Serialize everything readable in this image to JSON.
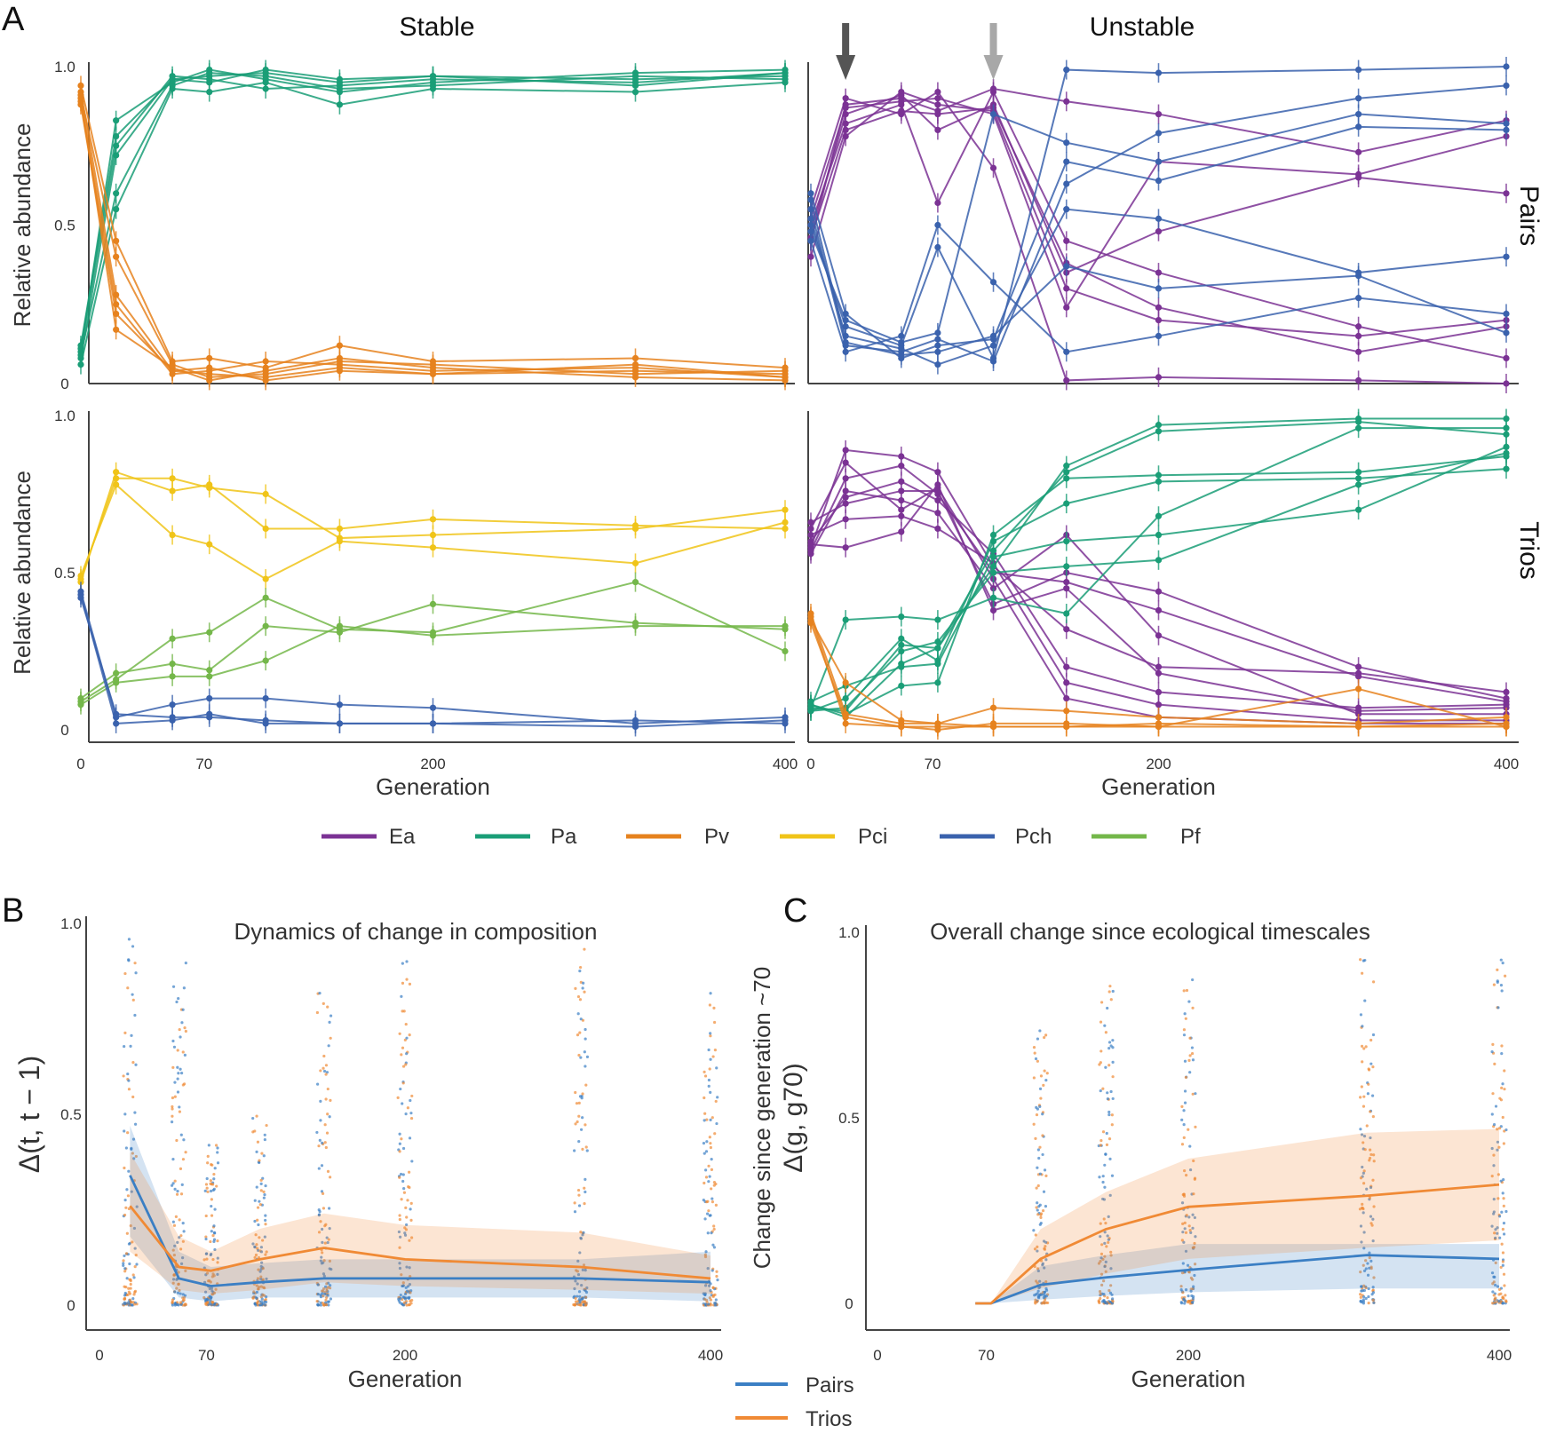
{
  "figure": {
    "panel_letters": [
      "A",
      "B",
      "C"
    ],
    "column_titles": [
      "Stable",
      "Unstable"
    ],
    "row_titles": [
      "Pairs",
      "Trios"
    ],
    "species_legend": [
      {
        "name": "Ea",
        "color": "#7b3294"
      },
      {
        "name": "Pa",
        "color": "#1a9e77"
      },
      {
        "name": "Pv",
        "color": "#e6821e"
      },
      {
        "name": "Pci",
        "color": "#f0c419"
      },
      {
        "name": "Pch",
        "color": "#3a62ad"
      },
      {
        "name": "Pf",
        "color": "#74b74a"
      }
    ],
    "group_legend": [
      {
        "name": "Pairs",
        "color": "#3b7fc4"
      },
      {
        "name": "Trios",
        "color": "#f08a35"
      }
    ]
  },
  "chart_data": [
    {
      "id": "A-stable-pairs",
      "type": "line",
      "xlabel": "",
      "ylabel": "Relative abundance",
      "xlim": [
        0,
        400
      ],
      "ylim": [
        0,
        1
      ],
      "xticks": [],
      "yticks": [
        "0",
        "0.5",
        "1.0"
      ],
      "x": [
        0,
        20,
        52,
        73,
        105,
        147,
        200,
        315,
        400
      ],
      "series": [
        {
          "species": "Pa",
          "values": [
            0.08,
            0.72,
            0.96,
            0.97,
            0.98,
            0.95,
            0.97,
            0.96,
            0.97
          ]
        },
        {
          "species": "Pa",
          "values": [
            0.1,
            0.83,
            0.95,
            0.99,
            0.96,
            0.92,
            0.95,
            0.98,
            0.99
          ]
        },
        {
          "species": "Pa",
          "values": [
            0.06,
            0.55,
            0.93,
            0.92,
            0.95,
            0.88,
            0.93,
            0.92,
            0.95
          ]
        },
        {
          "species": "Pa",
          "values": [
            0.11,
            0.75,
            0.97,
            0.96,
            0.93,
            0.94,
            0.96,
            0.95,
            0.98
          ]
        },
        {
          "species": "Pa",
          "values": [
            0.09,
            0.6,
            0.94,
            0.98,
            0.97,
            0.93,
            0.94,
            0.97,
            0.96
          ]
        },
        {
          "species": "Pa",
          "values": [
            0.12,
            0.78,
            0.96,
            0.95,
            0.99,
            0.96,
            0.97,
            0.94,
            0.98
          ]
        },
        {
          "species": "Pv",
          "values": [
            0.92,
            0.28,
            0.04,
            0.03,
            0.02,
            0.05,
            0.03,
            0.04,
            0.03
          ]
        },
        {
          "species": "Pv",
          "values": [
            0.9,
            0.17,
            0.05,
            0.01,
            0.04,
            0.08,
            0.05,
            0.02,
            0.01
          ]
        },
        {
          "species": "Pv",
          "values": [
            0.94,
            0.45,
            0.07,
            0.08,
            0.05,
            0.12,
            0.07,
            0.08,
            0.05
          ]
        },
        {
          "species": "Pv",
          "values": [
            0.89,
            0.25,
            0.03,
            0.04,
            0.07,
            0.06,
            0.04,
            0.05,
            0.02
          ]
        },
        {
          "species": "Pv",
          "values": [
            0.91,
            0.4,
            0.06,
            0.02,
            0.03,
            0.07,
            0.06,
            0.03,
            0.04
          ]
        },
        {
          "species": "Pv",
          "values": [
            0.88,
            0.22,
            0.04,
            0.05,
            0.01,
            0.04,
            0.03,
            0.06,
            0.02
          ]
        }
      ]
    },
    {
      "id": "A-unstable-pairs",
      "type": "line",
      "xlabel": "",
      "ylabel": "",
      "xlim": [
        0,
        400
      ],
      "ylim": [
        0,
        1
      ],
      "xticks": [],
      "yticks": [],
      "arrows_at_generation": [
        20,
        105
      ],
      "x": [
        0,
        20,
        52,
        73,
        105,
        147,
        200,
        315,
        400
      ],
      "series": [
        {
          "species": "Ea",
          "values": [
            0.45,
            0.88,
            0.9,
            0.86,
            0.93,
            0.89,
            0.85,
            0.73,
            0.83
          ]
        },
        {
          "species": "Ea",
          "values": [
            0.5,
            0.82,
            0.88,
            0.57,
            0.92,
            0.45,
            0.35,
            0.18,
            0.08
          ]
        },
        {
          "species": "Ea",
          "values": [
            0.4,
            0.78,
            0.92,
            0.88,
            0.86,
            0.3,
            0.2,
            0.15,
            0.2
          ]
        },
        {
          "species": "Ea",
          "values": [
            0.55,
            0.9,
            0.85,
            0.92,
            0.68,
            0.01,
            0.02,
            0.01,
            0.0
          ]
        },
        {
          "species": "Ea",
          "values": [
            0.48,
            0.85,
            0.91,
            0.8,
            0.88,
            0.35,
            0.48,
            0.65,
            0.6
          ]
        },
        {
          "species": "Ea",
          "values": [
            0.52,
            0.87,
            0.89,
            0.9,
            0.85,
            0.24,
            0.7,
            0.66,
            0.78
          ]
        },
        {
          "species": "Ea",
          "values": [
            0.46,
            0.8,
            0.86,
            0.85,
            0.87,
            0.38,
            0.24,
            0.1,
            0.18
          ]
        },
        {
          "species": "Pch",
          "values": [
            0.55,
            0.12,
            0.1,
            0.14,
            0.07,
            0.63,
            0.79,
            0.9,
            0.94
          ]
        },
        {
          "species": "Pch",
          "values": [
            0.5,
            0.18,
            0.12,
            0.43,
            0.08,
            0.99,
            0.98,
            0.99,
            1.0
          ]
        },
        {
          "species": "Pch",
          "values": [
            0.6,
            0.22,
            0.08,
            0.12,
            0.14,
            0.7,
            0.64,
            0.81,
            0.8
          ]
        },
        {
          "species": "Pch",
          "values": [
            0.45,
            0.1,
            0.15,
            0.5,
            0.32,
            0.1,
            0.15,
            0.27,
            0.22
          ]
        },
        {
          "species": "Pch",
          "values": [
            0.52,
            0.15,
            0.11,
            0.06,
            0.12,
            0.55,
            0.52,
            0.35,
            0.4
          ]
        },
        {
          "species": "Pch",
          "values": [
            0.48,
            0.2,
            0.13,
            0.16,
            0.85,
            0.76,
            0.7,
            0.85,
            0.82
          ]
        },
        {
          "species": "Pch",
          "values": [
            0.58,
            0.13,
            0.09,
            0.1,
            0.15,
            0.37,
            0.3,
            0.34,
            0.16
          ]
        }
      ]
    },
    {
      "id": "A-stable-trios",
      "type": "line",
      "xlabel": "Generation",
      "ylabel": "Relative abundance",
      "xlim": [
        0,
        400
      ],
      "ylim": [
        0,
        1
      ],
      "xticks": [
        "0",
        "70",
        "200",
        "400"
      ],
      "yticks": [
        "0",
        "0.5",
        "1.0"
      ],
      "x": [
        0,
        20,
        52,
        73,
        105,
        147,
        200,
        315,
        400
      ],
      "series": [
        {
          "species": "Pci",
          "values": [
            0.48,
            0.8,
            0.8,
            0.77,
            0.75,
            0.61,
            0.62,
            0.64,
            0.7
          ]
        },
        {
          "species": "Pci",
          "values": [
            0.47,
            0.82,
            0.76,
            0.78,
            0.64,
            0.64,
            0.67,
            0.65,
            0.64
          ]
        },
        {
          "species": "Pci",
          "values": [
            0.49,
            0.78,
            0.62,
            0.59,
            0.48,
            0.6,
            0.58,
            0.53,
            0.66
          ]
        },
        {
          "species": "Pf",
          "values": [
            0.09,
            0.16,
            0.29,
            0.31,
            0.42,
            0.32,
            0.31,
            0.47,
            0.25
          ]
        },
        {
          "species": "Pf",
          "values": [
            0.1,
            0.18,
            0.21,
            0.19,
            0.33,
            0.31,
            0.4,
            0.34,
            0.32
          ]
        },
        {
          "species": "Pf",
          "values": [
            0.08,
            0.15,
            0.17,
            0.17,
            0.22,
            0.33,
            0.3,
            0.33,
            0.33
          ]
        },
        {
          "species": "Pch",
          "values": [
            0.44,
            0.04,
            0.08,
            0.1,
            0.1,
            0.08,
            0.07,
            0.02,
            0.04
          ]
        },
        {
          "species": "Pch",
          "values": [
            0.43,
            0.02,
            0.03,
            0.05,
            0.02,
            0.02,
            0.02,
            0.01,
            0.03
          ]
        },
        {
          "species": "Pch",
          "values": [
            0.42,
            0.05,
            0.04,
            0.04,
            0.03,
            0.02,
            0.02,
            0.03,
            0.02
          ]
        }
      ]
    },
    {
      "id": "A-unstable-trios",
      "type": "line",
      "xlabel": "Generation",
      "ylabel": "",
      "xlim": [
        0,
        400
      ],
      "ylim": [
        0,
        1
      ],
      "xticks": [
        "0",
        "70",
        "200",
        "400"
      ],
      "yticks": [],
      "x": [
        0,
        20,
        52,
        73,
        105,
        147,
        200,
        315,
        400
      ],
      "series": [
        {
          "species": "Ea",
          "values": [
            0.58,
            0.89,
            0.87,
            0.82,
            0.52,
            0.32,
            0.2,
            0.18,
            0.12
          ]
        },
        {
          "species": "Ea",
          "values": [
            0.57,
            0.8,
            0.84,
            0.75,
            0.5,
            0.47,
            0.38,
            0.17,
            0.09
          ]
        },
        {
          "species": "Ea",
          "values": [
            0.6,
            0.74,
            0.79,
            0.73,
            0.56,
            0.2,
            0.12,
            0.07,
            0.08
          ]
        },
        {
          "species": "Ea",
          "values": [
            0.56,
            0.76,
            0.73,
            0.69,
            0.45,
            0.62,
            0.3,
            0.05,
            0.05
          ]
        },
        {
          "species": "Ea",
          "values": [
            0.64,
            0.85,
            0.7,
            0.77,
            0.48,
            0.1,
            0.04,
            0.02,
            0.02
          ]
        },
        {
          "species": "Ea",
          "values": [
            0.66,
            0.72,
            0.76,
            0.76,
            0.4,
            0.5,
            0.44,
            0.2,
            0.1
          ]
        },
        {
          "species": "Ea",
          "values": [
            0.62,
            0.67,
            0.68,
            0.64,
            0.53,
            0.15,
            0.08,
            0.03,
            0.03
          ]
        },
        {
          "species": "Ea",
          "values": [
            0.59,
            0.58,
            0.63,
            0.78,
            0.38,
            0.45,
            0.18,
            0.06,
            0.07
          ]
        },
        {
          "species": "Pa",
          "values": [
            0.07,
            0.06,
            0.27,
            0.26,
            0.52,
            0.84,
            0.97,
            0.99,
            0.99
          ]
        },
        {
          "species": "Pa",
          "values": [
            0.08,
            0.04,
            0.21,
            0.26,
            0.57,
            0.82,
            0.95,
            0.98,
            0.94
          ]
        },
        {
          "species": "Pa",
          "values": [
            0.06,
            0.1,
            0.29,
            0.22,
            0.6,
            0.72,
            0.79,
            0.8,
            0.83
          ]
        },
        {
          "species": "Pa",
          "values": [
            0.07,
            0.35,
            0.36,
            0.35,
            0.42,
            0.37,
            0.68,
            0.96,
            0.96
          ]
        },
        {
          "species": "Pa",
          "values": [
            0.09,
            0.14,
            0.2,
            0.21,
            0.55,
            0.6,
            0.62,
            0.7,
            0.9
          ]
        },
        {
          "species": "Pa",
          "values": [
            0.06,
            0.07,
            0.25,
            0.28,
            0.5,
            0.52,
            0.54,
            0.78,
            0.88
          ]
        },
        {
          "species": "Pa",
          "values": [
            0.08,
            0.05,
            0.14,
            0.15,
            0.62,
            0.8,
            0.81,
            0.82,
            0.87
          ]
        },
        {
          "species": "Pv",
          "values": [
            0.36,
            0.02,
            0.01,
            0.01,
            0.01,
            0.01,
            0.01,
            0.13,
            0.01
          ]
        },
        {
          "species": "Pv",
          "values": [
            0.37,
            0.05,
            0.02,
            0.02,
            0.07,
            0.06,
            0.04,
            0.02,
            0.04
          ]
        },
        {
          "species": "Pv",
          "values": [
            0.35,
            0.15,
            0.03,
            0.02,
            0.01,
            0.01,
            0.02,
            0.01,
            0.02
          ]
        },
        {
          "species": "Pv",
          "values": [
            0.34,
            0.04,
            0.01,
            0.0,
            0.02,
            0.02,
            0.01,
            0.01,
            0.01
          ]
        }
      ]
    },
    {
      "id": "B",
      "type": "scatter",
      "title": "Dynamics of change in composition",
      "xlabel": "Generation",
      "ylabel": "Δ(t, t − 1)",
      "xlim": [
        0,
        400
      ],
      "ylim": [
        0,
        1
      ],
      "xticks": [
        "0",
        "70",
        "200",
        "400"
      ],
      "yticks": [
        "0",
        "0.5",
        "1.0"
      ],
      "x": [
        20,
        52,
        73,
        105,
        147,
        200,
        315,
        400
      ],
      "series": [
        {
          "name": "Pairs",
          "mean": [
            0.34,
            0.07,
            0.05,
            0.06,
            0.07,
            0.07,
            0.07,
            0.06
          ],
          "lower": [
            0.18,
            0.02,
            0.01,
            0.02,
            0.02,
            0.02,
            0.02,
            0.01
          ],
          "upper": [
            0.47,
            0.14,
            0.1,
            0.11,
            0.12,
            0.12,
            0.12,
            0.14
          ]
        },
        {
          "name": "Trios",
          "mean": [
            0.26,
            0.1,
            0.09,
            0.12,
            0.15,
            0.12,
            0.1,
            0.07
          ],
          "lower": [
            0.14,
            0.04,
            0.03,
            0.04,
            0.06,
            0.05,
            0.04,
            0.03
          ],
          "upper": [
            0.4,
            0.18,
            0.14,
            0.2,
            0.24,
            0.21,
            0.19,
            0.13
          ]
        }
      ],
      "points_max": [
        0.98,
        0.9,
        0.42,
        0.5,
        0.82,
        0.93,
        0.94,
        0.82
      ]
    },
    {
      "id": "C",
      "type": "scatter",
      "title": "Overall change since ecological timescales",
      "xlabel": "Generation",
      "ylabel": "Change since generation ~70",
      "ylabel2": "Δ(g, g70)",
      "xlim": [
        0,
        400
      ],
      "ylim": [
        0,
        1
      ],
      "xticks": [
        "0",
        "70",
        "200",
        "400"
      ],
      "yticks": [
        "0",
        "0.5",
        "1.0"
      ],
      "x": [
        63,
        73,
        105,
        147,
        200,
        315,
        400
      ],
      "series": [
        {
          "name": "Pairs",
          "mean": [
            0.0,
            0.0,
            0.05,
            0.07,
            0.09,
            0.13,
            0.12
          ],
          "lower": [
            0.0,
            0.0,
            0.01,
            0.02,
            0.03,
            0.04,
            0.04
          ],
          "upper": [
            0.0,
            0.0,
            0.1,
            0.13,
            0.16,
            0.16,
            0.16
          ]
        },
        {
          "name": "Trios",
          "mean": [
            0.0,
            0.0,
            0.12,
            0.2,
            0.26,
            0.29,
            0.32
          ],
          "lower": [
            0.0,
            0.0,
            0.04,
            0.08,
            0.12,
            0.15,
            0.17
          ],
          "upper": [
            0.0,
            0.0,
            0.2,
            0.3,
            0.39,
            0.46,
            0.47
          ]
        }
      ],
      "points_max": [
        0.0,
        0.0,
        0.75,
        0.86,
        0.92,
        0.95,
        0.94
      ]
    }
  ]
}
